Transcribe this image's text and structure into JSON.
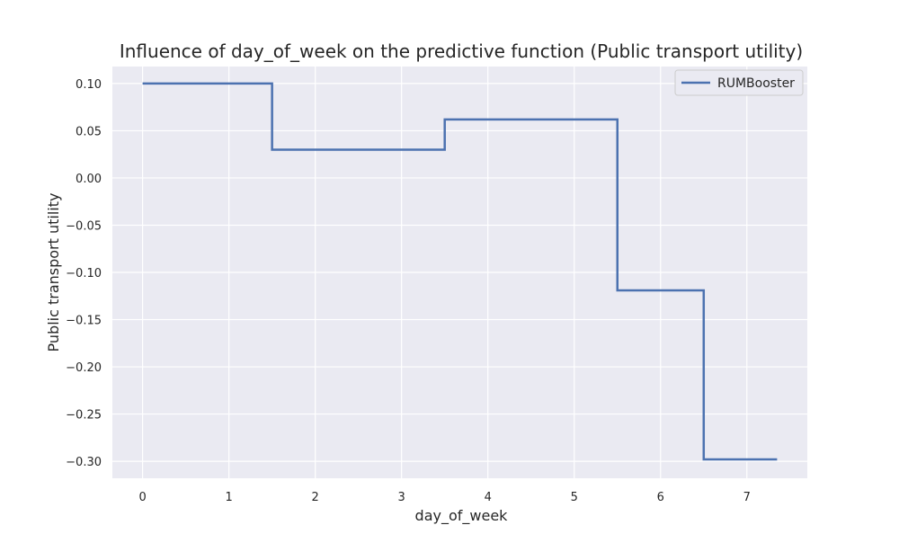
{
  "chart_data": {
    "type": "line",
    "drawstyle": "steps-post",
    "title": "Influence of day_of_week on the predictive function (Public transport utility)",
    "xlabel": "day_of_week",
    "ylabel": "Public transport utility",
    "xlim": [
      -0.35,
      7.7
    ],
    "ylim": [
      -0.318,
      0.118
    ],
    "xticks": [
      0,
      1,
      2,
      3,
      4,
      5,
      6,
      7
    ],
    "xtick_labels": [
      "0",
      "1",
      "2",
      "3",
      "4",
      "5",
      "6",
      "7"
    ],
    "yticks": [
      0.1,
      0.05,
      0.0,
      -0.05,
      -0.1,
      -0.15,
      -0.2,
      -0.25,
      -0.3
    ],
    "ytick_labels": [
      "0.10",
      "0.05",
      "0.00",
      "−0.05",
      "−0.10",
      "−0.15",
      "−0.20",
      "−0.25",
      "−0.30"
    ],
    "grid": true,
    "legend_position": "top-right",
    "series": [
      {
        "name": "RUMBooster",
        "color": "#4c72b0",
        "x": [
          0,
          1.5,
          3.5,
          5.5,
          6.5,
          7.35
        ],
        "y": [
          0.1,
          0.03,
          0.062,
          -0.119,
          -0.298,
          -0.298
        ]
      }
    ]
  },
  "colors": {
    "plot_background": "#eaeaf2",
    "grid": "#ffffff",
    "text": "#262626",
    "legend_border": "#cccccc"
  }
}
